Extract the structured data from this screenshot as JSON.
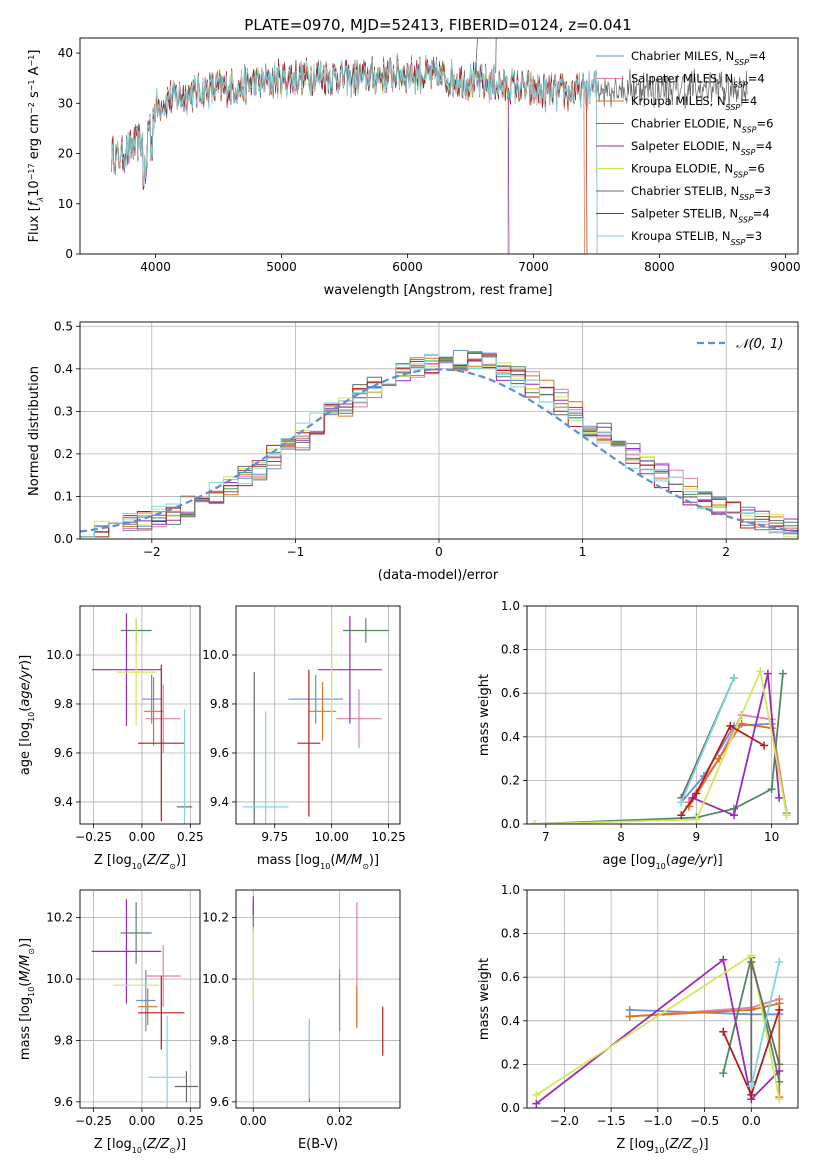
{
  "title": "PLATE=0970, MJD=52413, FIBERID=0124, z=0.041",
  "colors": {
    "Chabrier MILES": "#6b8fd8",
    "Salpeter MILES": "#e87ea8",
    "Kroupa MILES": "#d6761a",
    "Chabrier ELODIE": "#4f8a63",
    "Salpeter ELODIE": "#9a2bb5",
    "Kroupa ELODIE": "#d4e85a",
    "Chabrier STELIB": "#6a6a6a",
    "Salpeter STELIB": "#b01e1e",
    "Kroupa STELIB": "#7fd6dc",
    "normal_curve": "#5b8fd6",
    "grid": "#b0b0b0"
  },
  "chart_data": [
    {
      "type": "line",
      "xlabel": "wavelength [Angstrom, rest frame]",
      "ylabel": "Flux [f_λ 10^-17 erg cm^-2 s^-1 A^-1]",
      "xlim": [
        3400,
        9100
      ],
      "ylim": [
        0,
        43
      ],
      "xticks": [
        4000,
        5000,
        6000,
        7000,
        8000,
        9000
      ],
      "yticks": [
        0,
        10,
        20,
        30,
        40
      ],
      "grid": false,
      "legend_position": "top-right",
      "continuum": {
        "x": [
          3650,
          3700,
          3800,
          3900,
          4000,
          4100,
          4300,
          4500,
          4700,
          5000,
          5300,
          5600,
          6000,
          6300,
          6600,
          6900,
          7200,
          7500
        ],
        "y": [
          20,
          19,
          21,
          23,
          29,
          31,
          32,
          33,
          33.5,
          35,
          35.5,
          35,
          36,
          35,
          34,
          33,
          32,
          33
        ]
      },
      "series": [
        {
          "name": "Chabrier MILES",
          "nssp": "4",
          "end": 7500
        },
        {
          "name": "Salpeter MILES",
          "nssp": "4",
          "end": 7500
        },
        {
          "name": "Kroupa MILES",
          "nssp": "4",
          "end": 7400
        },
        {
          "name": "Chabrier ELODIE",
          "nssp": "6",
          "end": 6800
        },
        {
          "name": "Salpeter ELODIE",
          "nssp": "4",
          "end": 6800
        },
        {
          "name": "Kroupa ELODIE",
          "nssp": "6",
          "end": 6790
        },
        {
          "name": "Chabrier STELIB",
          "nssp": "3",
          "end": 8700
        },
        {
          "name": "Salpeter STELIB",
          "nssp": "4",
          "end": 7420
        },
        {
          "name": "Kroupa STELIB",
          "nssp": "3",
          "end": 7500
        }
      ]
    },
    {
      "type": "histogram",
      "xlabel": "(data-model)/error",
      "ylabel": "Normed distribution",
      "xlim": [
        -2.5,
        2.5
      ],
      "ylim": [
        0,
        0.51
      ],
      "xticks": [
        -2,
        -1,
        0,
        1,
        2
      ],
      "yticks": [
        0.0,
        0.1,
        0.2,
        0.3,
        0.4,
        0.5
      ],
      "grid": true,
      "legend": "𝒩(0, 1)",
      "legend_position": "top-right",
      "bin_width": 0.1,
      "bin_start": -2.5
    },
    {
      "type": "errorbar",
      "xlabel": "Z [log10(Z/Z⊙)]",
      "ylabel": "age [log10(age/yr)]",
      "xlim": [
        -0.32,
        0.3
      ],
      "ylim": [
        9.31,
        10.2
      ],
      "xticks": [
        -0.25,
        0.0,
        0.25
      ],
      "yticks": [
        9.4,
        9.6,
        9.8,
        10.0
      ],
      "grid": true,
      "points": [
        {
          "model": "Chabrier MILES",
          "x": 0.05,
          "xerr": 0.05,
          "y": 9.82,
          "yerr": 0.1
        },
        {
          "model": "Salpeter MILES",
          "x": 0.11,
          "xerr": 0.09,
          "y": 9.74,
          "yerr": 0.14
        },
        {
          "model": "Kroupa MILES",
          "x": 0.06,
          "xerr": 0.05,
          "y": 9.77,
          "yerr": 0.14
        },
        {
          "model": "Chabrier ELODIE",
          "x": -0.03,
          "xerr": 0.08,
          "y": 10.1,
          "yerr": 0.05
        },
        {
          "model": "Salpeter ELODIE",
          "x": -0.08,
          "xerr": 0.18,
          "y": 9.94,
          "yerr": 0.23
        },
        {
          "model": "Kroupa ELODIE",
          "x": -0.03,
          "xerr": 0.1,
          "y": 9.93,
          "yerr": 0.22
        },
        {
          "model": "Chabrier STELIB",
          "x": 0.22,
          "xerr": 0.04,
          "y": 9.38,
          "yerr": 0.0
        },
        {
          "model": "Salpeter STELIB",
          "x": 0.1,
          "xerr": 0.12,
          "y": 9.64,
          "yerr": 0.32
        },
        {
          "model": "Kroupa STELIB",
          "x": 0.22,
          "xerr": 0.0,
          "y": 9.38,
          "yerr": 0.4
        }
      ]
    },
    {
      "type": "errorbar",
      "xlabel": "mass [log10(M/M⊙)]",
      "ylabel": "",
      "xlim": [
        9.58,
        10.3
      ],
      "ylim": [
        9.31,
        10.2
      ],
      "xticks": [
        9.75,
        10.0,
        10.25
      ],
      "yticks": [
        9.4,
        9.6,
        9.8,
        10.0
      ],
      "grid": true,
      "points": [
        {
          "model": "Chabrier MILES",
          "x": 9.93,
          "xerr": 0.12,
          "y": 9.82,
          "yerr": 0.1
        },
        {
          "model": "Salpeter MILES",
          "x": 10.12,
          "xerr": 0.1,
          "y": 9.74,
          "yerr": 0.12
        },
        {
          "model": "Kroupa MILES",
          "x": 9.96,
          "xerr": 0.06,
          "y": 9.77,
          "yerr": 0.12
        },
        {
          "model": "Chabrier ELODIE",
          "x": 10.15,
          "xerr": 0.1,
          "y": 10.1,
          "yerr": 0.05
        },
        {
          "model": "Salpeter ELODIE",
          "x": 10.08,
          "xerr": 0.14,
          "y": 9.94,
          "yerr": 0.22
        },
        {
          "model": "Kroupa ELODIE",
          "x": 10.0,
          "xerr": 0.0,
          "y": 9.92,
          "yerr": 0.22
        },
        {
          "model": "Chabrier STELIB",
          "x": 9.66,
          "xerr": 0.0,
          "y": 9.38,
          "yerr": 0.55
        },
        {
          "model": "Salpeter STELIB",
          "x": 9.9,
          "xerr": 0.05,
          "y": 9.64,
          "yerr": 0.3
        },
        {
          "model": "Kroupa STELIB",
          "x": 9.71,
          "xerr": 0.1,
          "y": 9.38,
          "yerr": 0.39
        }
      ]
    },
    {
      "type": "line",
      "xlabel": "age [log10(age/yr)]",
      "ylabel": "mass weight",
      "xlim": [
        6.75,
        10.35
      ],
      "ylim": [
        0,
        1
      ],
      "xticks": [
        7,
        8,
        9,
        10
      ],
      "yticks": [
        0.0,
        0.2,
        0.4,
        0.6,
        0.8,
        1.0
      ],
      "grid": true,
      "series": [
        {
          "name": "Chabrier MILES",
          "x": [
            8.8,
            9.1,
            9.5,
            10.0,
            10.2
          ],
          "y": [
            0.1,
            0.22,
            0.45,
            0.46,
            0.05
          ]
        },
        {
          "name": "Salpeter MILES",
          "x": [
            8.9,
            9.3,
            9.6,
            10.0,
            10.2
          ],
          "y": [
            0.1,
            0.3,
            0.5,
            0.48,
            0.04
          ]
        },
        {
          "name": "Kroupa MILES",
          "x": [
            8.9,
            9.3,
            9.6,
            10.0,
            10.2
          ],
          "y": [
            0.08,
            0.3,
            0.46,
            0.44,
            0.04
          ]
        },
        {
          "name": "Chabrier ELODIE",
          "x": [
            6.85,
            9.0,
            9.5,
            10.0,
            10.15
          ],
          "y": [
            0.0,
            0.03,
            0.07,
            0.16,
            0.69
          ]
        },
        {
          "name": "Salpeter ELODIE",
          "x": [
            8.95,
            9.5,
            9.95,
            10.1
          ],
          "y": [
            0.12,
            0.04,
            0.69,
            0.12
          ]
        },
        {
          "name": "Kroupa ELODIE",
          "x": [
            6.85,
            9.0,
            9.85,
            10.2
          ],
          "y": [
            0.0,
            0.02,
            0.7,
            0.04
          ]
        },
        {
          "name": "Chabrier STELIB",
          "x": [
            8.8,
            9.5
          ],
          "y": [
            0.12,
            0.67
          ]
        },
        {
          "name": "Salpeter STELIB",
          "x": [
            8.8,
            9.0,
            9.45,
            9.9
          ],
          "y": [
            0.04,
            0.14,
            0.45,
            0.36
          ]
        },
        {
          "name": "Kroupa STELIB",
          "x": [
            8.8,
            9.5
          ],
          "y": [
            0.1,
            0.67
          ]
        }
      ]
    },
    {
      "type": "errorbar",
      "xlabel": "Z [log10(Z/Z⊙)]",
      "ylabel": "mass [log10(M/M⊙)]",
      "xlim": [
        -0.32,
        0.3
      ],
      "ylim": [
        9.58,
        10.29
      ],
      "xticks": [
        -0.25,
        0.0,
        0.25
      ],
      "yticks": [
        9.6,
        9.8,
        10.0,
        10.2
      ],
      "grid": true,
      "points": [
        {
          "model": "Chabrier MILES",
          "x": 0.02,
          "xerr": 0.05,
          "y": 9.93,
          "yerr": 0.1
        },
        {
          "model": "Salpeter MILES",
          "x": 0.11,
          "xerr": 0.09,
          "y": 10.01,
          "yerr": 0.1
        },
        {
          "model": "Kroupa MILES",
          "x": 0.03,
          "xerr": 0.05,
          "y": 9.91,
          "yerr": 0.06
        },
        {
          "model": "Chabrier ELODIE",
          "x": -0.03,
          "xerr": 0.08,
          "y": 10.15,
          "yerr": 0.1
        },
        {
          "model": "Salpeter ELODIE",
          "x": -0.08,
          "xerr": 0.18,
          "y": 10.09,
          "yerr": 0.17
        },
        {
          "model": "Kroupa ELODIE",
          "x": -0.03,
          "xerr": 0.12,
          "y": 9.98,
          "yerr": 0.0
        },
        {
          "model": "Chabrier STELIB",
          "x": 0.23,
          "xerr": 0.06,
          "y": 9.65,
          "yerr": 0.05
        },
        {
          "model": "Salpeter STELIB",
          "x": 0.1,
          "xerr": 0.12,
          "y": 9.89,
          "yerr": 0.12
        },
        {
          "model": "Kroupa STELIB",
          "x": 0.13,
          "xerr": 0.1,
          "y": 9.68,
          "yerr": 0.2
        }
      ]
    },
    {
      "type": "errorbar",
      "xlabel": "E(B-V)",
      "ylabel": "",
      "xlim": [
        -0.004,
        0.034
      ],
      "ylim": [
        9.58,
        10.29
      ],
      "xticks": [
        0.0,
        0.02
      ],
      "yticks": [
        9.6,
        9.8,
        10.0,
        10.2
      ],
      "grid": true,
      "points": [
        {
          "model": "Chabrier MILES",
          "x": 0.02,
          "y": 9.93,
          "yerr": 0.1
        },
        {
          "model": "Salpeter MILES",
          "x": 0.024,
          "y": 10.05,
          "yerr": 0.2
        },
        {
          "model": "Kroupa MILES",
          "x": 0.024,
          "y": 9.91,
          "yerr": 0.07
        },
        {
          "model": "Chabrier ELODIE",
          "x": 0.0,
          "y": 10.2,
          "yerr": 0.05
        },
        {
          "model": "Salpeter ELODIE",
          "x": 0.0,
          "y": 10.24,
          "yerr": 0.03
        },
        {
          "model": "Kroupa ELODIE",
          "x": 0.0,
          "y": 10.05,
          "yerr": 0.12
        },
        {
          "model": "Chabrier STELIB",
          "x": 0.013,
          "y": 9.73,
          "yerr": 0.13
        },
        {
          "model": "Salpeter STELIB",
          "x": 0.03,
          "y": 9.83,
          "yerr": 0.08
        },
        {
          "model": "Kroupa STELIB",
          "x": 0.013,
          "y": 9.74,
          "yerr": 0.13
        }
      ]
    },
    {
      "type": "line",
      "xlabel": "Z [log10(Z/Z⊙)]",
      "ylabel": "mass weight",
      "xlim": [
        -2.4,
        0.5
      ],
      "ylim": [
        0,
        1
      ],
      "xticks": [
        -2.0,
        -1.5,
        -1.0,
        -0.5,
        0.0
      ],
      "yticks": [
        0.0,
        0.2,
        0.4,
        0.6,
        0.8,
        1.0
      ],
      "grid": true,
      "series": [
        {
          "name": "Chabrier MILES",
          "x": [
            -1.3,
            0.0,
            0.3
          ],
          "y": [
            0.45,
            0.43,
            0.43
          ]
        },
        {
          "name": "Salpeter MILES",
          "x": [
            -1.3,
            0.0,
            0.3
          ],
          "y": [
            0.42,
            0.46,
            0.5
          ]
        },
        {
          "name": "Kroupa MILES",
          "x": [
            -1.3,
            0.0,
            0.3,
            0.3
          ],
          "y": [
            0.42,
            0.45,
            0.48,
            0.05
          ]
        },
        {
          "name": "Chabrier ELODIE",
          "x": [
            -0.3,
            0.0,
            0.3
          ],
          "y": [
            0.16,
            0.69,
            0.12
          ]
        },
        {
          "name": "Salpeter ELODIE",
          "x": [
            -2.3,
            -0.3,
            0.0,
            0.3
          ],
          "y": [
            0.02,
            0.68,
            0.04,
            0.17
          ]
        },
        {
          "name": "Kroupa ELODIE",
          "x": [
            -2.3,
            0.0,
            0.3
          ],
          "y": [
            0.06,
            0.7,
            0.04
          ]
        },
        {
          "name": "Chabrier STELIB",
          "x": [
            0.0,
            0.0,
            0.3
          ],
          "y": [
            0.12,
            0.67,
            0.2
          ]
        },
        {
          "name": "Salpeter STELIB",
          "x": [
            -0.3,
            0.0,
            0.3
          ],
          "y": [
            0.35,
            0.06,
            0.45
          ]
        },
        {
          "name": "Kroupa STELIB",
          "x": [
            0.0,
            0.3
          ],
          "y": [
            0.1,
            0.67
          ]
        }
      ]
    }
  ]
}
